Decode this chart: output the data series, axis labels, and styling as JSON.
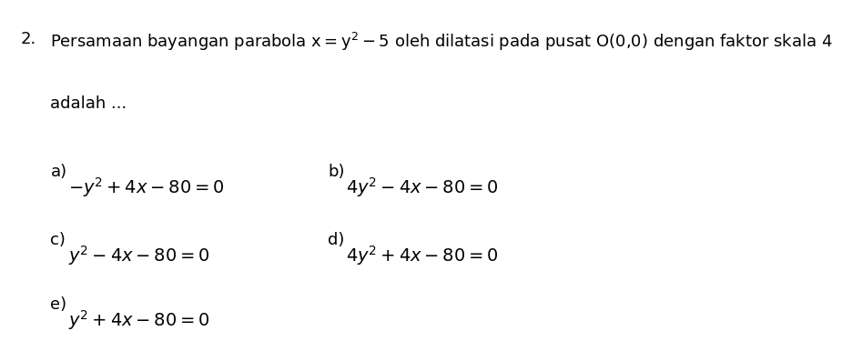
{
  "background_color": "#ffffff",
  "number": "2.",
  "question_line1": "Persamaan bayangan parabola $\\mathrm{x} = \\mathrm{y}^2 - 5$ oleh dilatasi pada pusat O(0,0) dengan faktor skala 4",
  "question_line2": "adalah ...",
  "options": [
    {
      "label": "a)",
      "formula": "$-y^2 + 4x - 80 = 0$"
    },
    {
      "label": "b)",
      "formula": "$4y^2 - 4x - 80 = 0$"
    },
    {
      "label": "c)",
      "formula": "$y^2 - 4x - 80 = 0$"
    },
    {
      "label": "d)",
      "formula": "$4y^2 + 4x - 80 = 0$"
    },
    {
      "label": "e)",
      "formula": "$y^2 + 4x - 80 = 0$"
    }
  ],
  "text_color": "#000000",
  "font_size_question": 13,
  "font_size_options": 13,
  "font_size_number": 13
}
